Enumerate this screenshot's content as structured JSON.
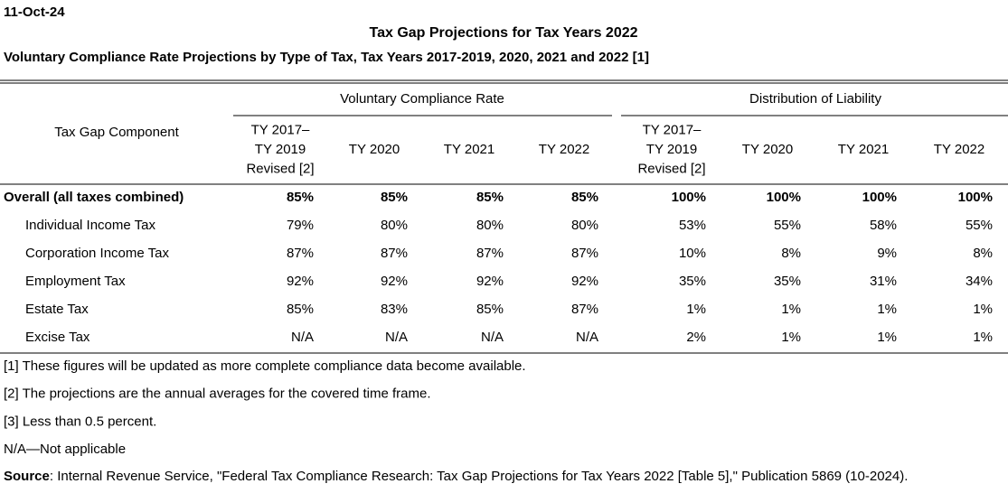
{
  "date": "11-Oct-24",
  "title": "Tax Gap Projections for Tax Years 2022",
  "subtitle": "Voluntary Compliance Rate Projections by Type of Tax, Tax Years 2017-2019, 2020, 2021 and 2022 [1]",
  "table": {
    "group_headers": [
      "Voluntary Compliance Rate",
      "Distribution of Liability"
    ],
    "row_header": "Tax Gap Component",
    "columns": [
      [
        "TY 2017–",
        "TY 2019",
        "Revised [2]"
      ],
      [
        "TY 2020"
      ],
      [
        "TY 2021"
      ],
      [
        "TY 2022"
      ],
      [
        "TY 2017–",
        "TY 2019",
        "Revised [2]"
      ],
      [
        "TY 2020"
      ],
      [
        "TY 2021"
      ],
      [
        "TY 2022"
      ]
    ],
    "rows": [
      {
        "label": "Overall (all taxes combined)",
        "cells": [
          "85%",
          "85%",
          "85%",
          "85%",
          "100%",
          "100%",
          "100%",
          "100%"
        ]
      },
      {
        "label": "Individual Income Tax",
        "cells": [
          "79%",
          "80%",
          "80%",
          "80%",
          "53%",
          "55%",
          "58%",
          "55%"
        ]
      },
      {
        "label": "Corporation Income Tax",
        "cells": [
          "87%",
          "87%",
          "87%",
          "87%",
          "10%",
          "8%",
          "9%",
          "8%"
        ]
      },
      {
        "label": "Employment Tax",
        "cells": [
          "92%",
          "92%",
          "92%",
          "92%",
          "35%",
          "35%",
          "31%",
          "34%"
        ]
      },
      {
        "label": "Estate Tax",
        "cells": [
          "85%",
          "83%",
          "85%",
          "87%",
          "1%",
          "1%",
          "1%",
          "1%"
        ]
      },
      {
        "label": "Excise Tax",
        "cells": [
          "N/A",
          "N/A",
          "N/A",
          "N/A",
          "2%",
          "1%",
          "1%",
          "1%"
        ]
      }
    ]
  },
  "footnotes": [
    "[1]  These figures will be updated as more complete compliance data become available.",
    "[2]  The projections are the annual averages for the covered time frame.",
    "[3]  Less than 0.5 percent.",
    "N/A—Not applicable"
  ],
  "source": {
    "label": "Source",
    "text": ": Internal Revenue Service, \"Federal Tax Compliance Research: Tax Gap Projections for Tax Years 2022 [Table 5],\" Publication 5869 (10-2024)."
  }
}
